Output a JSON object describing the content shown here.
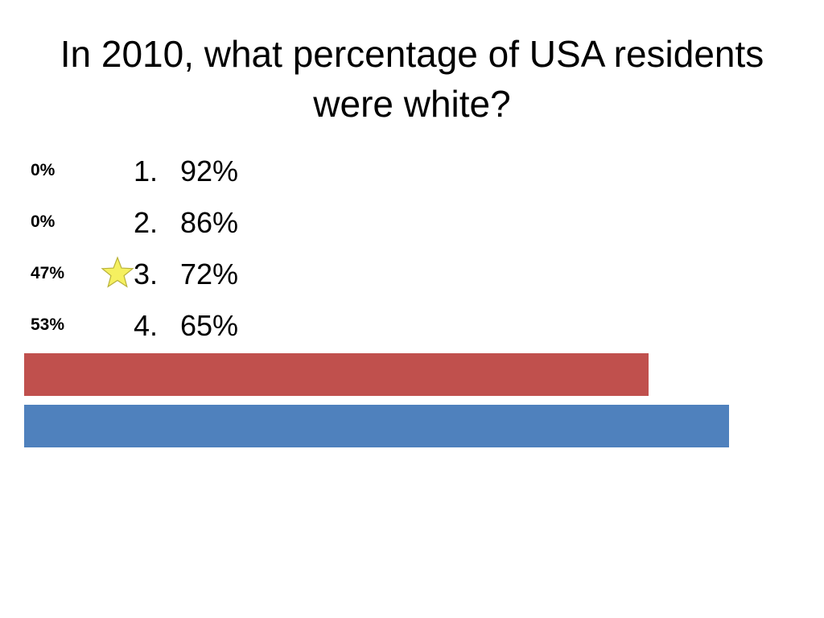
{
  "slide": {
    "title": "In 2010, what percentage of USA residents were white?"
  },
  "chart_data": {
    "type": "bar",
    "orientation": "horizontal",
    "categories": [
      "92%",
      "86%",
      "72%",
      "65%"
    ],
    "option_numbers": [
      "1.",
      "2.",
      "3.",
      "4."
    ],
    "values": [
      0,
      0,
      47,
      53
    ],
    "value_labels": [
      "0%",
      "0%",
      "47%",
      "53%"
    ],
    "xlim": [
      0,
      100
    ],
    "bar_colors": [
      "#c0504d",
      "#c0504d",
      "#c0504d",
      "#4f81bd"
    ],
    "correct_index": 2,
    "correct_marker": "star-icon",
    "star_color": "#f5f060",
    "grid": false,
    "title": "In 2010, what percentage of USA residents were white?",
    "xlabel": "",
    "ylabel": ""
  }
}
